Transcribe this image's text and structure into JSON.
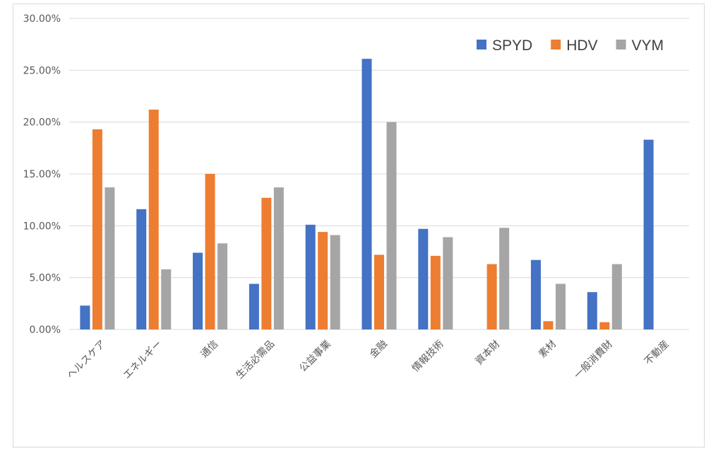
{
  "chart_data": {
    "type": "bar",
    "title": "",
    "xlabel": "",
    "ylabel": "",
    "ylim": [
      0,
      0.3
    ],
    "ytick_step": 0.05,
    "ytick_labels": [
      "0.00%",
      "5.00%",
      "10.00%",
      "15.00%",
      "20.00%",
      "25.00%",
      "30.00%"
    ],
    "grid": true,
    "legend_position": "top-right",
    "categories": [
      "ヘルスケア",
      "エネルギー",
      "通信",
      "生活必需品",
      "公益事業",
      "金融",
      "情報技術",
      "資本財",
      "素材",
      "一般消費財",
      "不動産"
    ],
    "series": [
      {
        "name": "SPYD",
        "color": "#4472C4",
        "values": [
          0.023,
          0.116,
          0.074,
          0.044,
          0.101,
          0.261,
          0.097,
          null,
          0.067,
          0.036,
          0.183
        ]
      },
      {
        "name": "HDV",
        "color": "#ED7D31",
        "values": [
          0.193,
          0.212,
          0.15,
          0.127,
          0.094,
          0.072,
          0.071,
          0.063,
          0.008,
          0.007,
          null
        ]
      },
      {
        "name": "VYM",
        "color": "#A5A5A5",
        "values": [
          0.137,
          0.058,
          0.083,
          0.137,
          0.091,
          0.2,
          0.089,
          0.098,
          0.044,
          0.063,
          null
        ]
      }
    ]
  }
}
